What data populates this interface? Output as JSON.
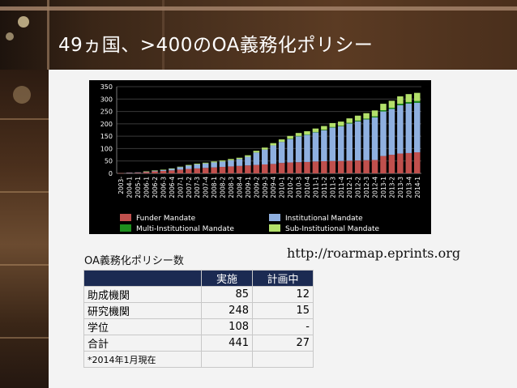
{
  "slide": {
    "title": "49ヵ国、>400のOA義務化ポリシー",
    "source_url": "http://roarmap.eprints.org",
    "caption": "OA義務化ポリシー数"
  },
  "table": {
    "headers": [
      "",
      "実施",
      "計画中"
    ],
    "rows": [
      [
        "助成機関",
        "85",
        "12"
      ],
      [
        "研究機関",
        "248",
        "15"
      ],
      [
        "学位",
        "108",
        "-"
      ],
      [
        "合計",
        "441",
        "27"
      ],
      [
        "*2014年1月現在",
        "",
        ""
      ]
    ]
  },
  "chart_data": {
    "type": "bar",
    "stacked": true,
    "ylim": [
      0,
      350
    ],
    "yticks": [
      0,
      50,
      100,
      150,
      200,
      250,
      300,
      350
    ],
    "categories": [
      "2003-",
      "2004-1",
      "2005-1",
      "2006-1",
      "2006-2",
      "2006-3",
      "2006-4",
      "2007-1",
      "2007-2",
      "2007-3",
      "2007-4",
      "2008-1",
      "2008-2",
      "2008-3",
      "2008-4",
      "2009-1",
      "2009-2",
      "2009-3",
      "2009-4",
      "2010-1",
      "2010-2",
      "2010-3",
      "2010-4",
      "2011-1",
      "2011-2",
      "2011-3",
      "2011-4",
      "2012-1",
      "2012-2",
      "2012-3",
      "2012-4",
      "2013-1",
      "2013-2",
      "2013-3",
      "2013-4",
      "2014-1"
    ],
    "series": [
      {
        "name": "Funder Mandate",
        "color": "#c0504d",
        "values": [
          1,
          2,
          3,
          5,
          8,
          10,
          12,
          15,
          18,
          20,
          22,
          24,
          26,
          28,
          30,
          32,
          34,
          36,
          38,
          42,
          44,
          45,
          46,
          48,
          49,
          50,
          50,
          51,
          52,
          53,
          54,
          70,
          75,
          80,
          82,
          85
        ]
      },
      {
        "name": "Institutional Mandate",
        "color": "#8fb0e0",
        "values": [
          0,
          1,
          1,
          2,
          3,
          4,
          6,
          10,
          13,
          16,
          18,
          20,
          22,
          25,
          28,
          35,
          50,
          60,
          75,
          85,
          95,
          105,
          110,
          118,
          125,
          135,
          140,
          150,
          158,
          165,
          172,
          180,
          185,
          195,
          200,
          200
        ]
      },
      {
        "name": "Multi-Institutional Mandate",
        "color": "#1e8f1e",
        "values": [
          0,
          0,
          0,
          0,
          0,
          0,
          0,
          0,
          0,
          0,
          0,
          0,
          0,
          0,
          0,
          0,
          0,
          0,
          0,
          0,
          1,
          1,
          1,
          1,
          2,
          2,
          2,
          3,
          3,
          3,
          4,
          5,
          5,
          6,
          6,
          7
        ]
      },
      {
        "name": "Sub-Institutional Mandate",
        "color": "#b3e06a",
        "values": [
          0,
          0,
          0,
          1,
          1,
          1,
          2,
          2,
          3,
          3,
          3,
          4,
          4,
          5,
          5,
          6,
          7,
          8,
          9,
          10,
          11,
          12,
          13,
          14,
          15,
          16,
          17,
          18,
          20,
          22,
          24,
          26,
          28,
          30,
          32,
          33
        ]
      }
    ]
  }
}
